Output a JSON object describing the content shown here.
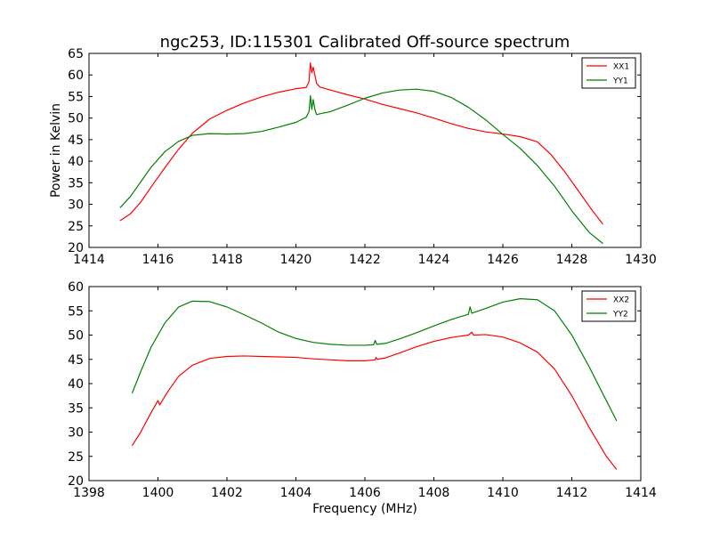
{
  "figure": {
    "title": "ngc253, ID:115301 Calibrated Off-source spectrum",
    "ylabel": "Power in Kelvin",
    "xlabel": "Frequency (MHz)"
  },
  "chart_data": [
    {
      "type": "line",
      "title": "ngc253, ID:115301 Calibrated Off-source spectrum",
      "xlabel": "",
      "ylabel": "Power in Kelvin",
      "xlim": [
        1414,
        1430
      ],
      "ylim": [
        20,
        65
      ],
      "xticks": [
        1414,
        1416,
        1418,
        1420,
        1422,
        1424,
        1426,
        1428,
        1430
      ],
      "yticks": [
        20,
        25,
        30,
        35,
        40,
        45,
        50,
        55,
        60,
        65
      ],
      "grid": false,
      "legend": "top-right",
      "series": [
        {
          "name": "XX1",
          "color": "#ff0000",
          "points": [
            [
              1414.9,
              26.2
            ],
            [
              1415.2,
              27.8
            ],
            [
              1415.5,
              30.5
            ],
            [
              1415.8,
              34.0
            ],
            [
              1416.2,
              38.5
            ],
            [
              1416.6,
              42.8
            ],
            [
              1417.0,
              46.5
            ],
            [
              1417.5,
              49.8
            ],
            [
              1418.0,
              51.8
            ],
            [
              1418.5,
              53.5
            ],
            [
              1419.0,
              54.9
            ],
            [
              1419.5,
              56.0
            ],
            [
              1420.0,
              56.8
            ],
            [
              1420.3,
              57.1
            ],
            [
              1420.38,
              58.5
            ],
            [
              1420.42,
              62.8
            ],
            [
              1420.46,
              60.5
            ],
            [
              1420.5,
              61.8
            ],
            [
              1420.55,
              60.0
            ],
            [
              1420.6,
              58.0
            ],
            [
              1420.7,
              57.2
            ],
            [
              1421.0,
              56.5
            ],
            [
              1421.5,
              55.4
            ],
            [
              1422.0,
              54.4
            ],
            [
              1422.5,
              53.2
            ],
            [
              1423.0,
              52.2
            ],
            [
              1423.5,
              51.2
            ],
            [
              1424.0,
              50.0
            ],
            [
              1424.5,
              48.7
            ],
            [
              1425.0,
              47.6
            ],
            [
              1425.5,
              46.8
            ],
            [
              1426.0,
              46.3
            ],
            [
              1426.5,
              45.7
            ],
            [
              1427.0,
              44.5
            ],
            [
              1427.4,
              41.5
            ],
            [
              1427.8,
              37.5
            ],
            [
              1428.2,
              33.0
            ],
            [
              1428.6,
              28.5
            ],
            [
              1428.9,
              25.4
            ]
          ]
        },
        {
          "name": "YY1",
          "color": "#008000",
          "points": [
            [
              1414.9,
              29.2
            ],
            [
              1415.2,
              31.8
            ],
            [
              1415.5,
              35.2
            ],
            [
              1415.8,
              38.6
            ],
            [
              1416.2,
              42.2
            ],
            [
              1416.6,
              44.6
            ],
            [
              1417.0,
              46.0
            ],
            [
              1417.5,
              46.4
            ],
            [
              1418.0,
              46.3
            ],
            [
              1418.5,
              46.4
            ],
            [
              1419.0,
              46.9
            ],
            [
              1419.5,
              47.9
            ],
            [
              1420.0,
              49.0
            ],
            [
              1420.3,
              50.2
            ],
            [
              1420.38,
              51.5
            ],
            [
              1420.42,
              55.2
            ],
            [
              1420.46,
              52.0
            ],
            [
              1420.5,
              54.3
            ],
            [
              1420.55,
              52.0
            ],
            [
              1420.6,
              50.8
            ],
            [
              1420.7,
              51.0
            ],
            [
              1421.0,
              51.5
            ],
            [
              1421.5,
              53.0
            ],
            [
              1422.0,
              54.6
            ],
            [
              1422.5,
              55.8
            ],
            [
              1423.0,
              56.5
            ],
            [
              1423.5,
              56.7
            ],
            [
              1424.0,
              56.2
            ],
            [
              1424.5,
              54.8
            ],
            [
              1425.0,
              52.5
            ],
            [
              1425.5,
              49.6
            ],
            [
              1426.0,
              46.2
            ],
            [
              1426.5,
              43.0
            ],
            [
              1427.0,
              39.0
            ],
            [
              1427.5,
              34.2
            ],
            [
              1428.0,
              28.5
            ],
            [
              1428.5,
              23.5
            ],
            [
              1428.9,
              20.9
            ]
          ]
        }
      ]
    },
    {
      "type": "line",
      "title": "",
      "xlabel": "Frequency (MHz)",
      "ylabel": "",
      "xlim": [
        1398,
        1414
      ],
      "ylim": [
        20,
        60
      ],
      "xticks": [
        1398,
        1400,
        1402,
        1404,
        1406,
        1408,
        1410,
        1412,
        1414
      ],
      "yticks": [
        20,
        25,
        30,
        35,
        40,
        45,
        50,
        55,
        60
      ],
      "grid": false,
      "legend": "top-right",
      "series": [
        {
          "name": "XX2",
          "color": "#ff0000",
          "points": [
            [
              1399.25,
              27.2
            ],
            [
              1399.5,
              30.0
            ],
            [
              1399.8,
              34.0
            ],
            [
              1400.0,
              36.5
            ],
            [
              1400.05,
              35.6
            ],
            [
              1400.3,
              38.5
            ],
            [
              1400.6,
              41.5
            ],
            [
              1401.0,
              43.8
            ],
            [
              1401.5,
              45.2
            ],
            [
              1402.0,
              45.6
            ],
            [
              1402.5,
              45.7
            ],
            [
              1403.0,
              45.6
            ],
            [
              1403.5,
              45.5
            ],
            [
              1404.0,
              45.4
            ],
            [
              1404.5,
              45.1
            ],
            [
              1405.0,
              44.9
            ],
            [
              1405.5,
              44.7
            ],
            [
              1406.0,
              44.7
            ],
            [
              1406.3,
              44.9
            ],
            [
              1406.32,
              45.4
            ],
            [
              1406.36,
              45.0
            ],
            [
              1406.6,
              45.3
            ],
            [
              1407.0,
              46.3
            ],
            [
              1407.5,
              47.6
            ],
            [
              1408.0,
              48.7
            ],
            [
              1408.5,
              49.5
            ],
            [
              1409.0,
              50.0
            ],
            [
              1409.1,
              50.6
            ],
            [
              1409.15,
              50.0
            ],
            [
              1409.5,
              50.1
            ],
            [
              1410.0,
              49.6
            ],
            [
              1410.5,
              48.4
            ],
            [
              1411.0,
              46.5
            ],
            [
              1411.5,
              43.0
            ],
            [
              1412.0,
              37.5
            ],
            [
              1412.5,
              31.0
            ],
            [
              1413.0,
              25.0
            ],
            [
              1413.3,
              22.3
            ]
          ]
        },
        {
          "name": "YY2",
          "color": "#008000",
          "points": [
            [
              1399.25,
              38.0
            ],
            [
              1399.5,
              42.5
            ],
            [
              1399.8,
              47.5
            ],
            [
              1400.2,
              52.5
            ],
            [
              1400.6,
              55.8
            ],
            [
              1401.0,
              57.0
            ],
            [
              1401.5,
              56.9
            ],
            [
              1402.0,
              55.8
            ],
            [
              1402.5,
              54.2
            ],
            [
              1403.0,
              52.5
            ],
            [
              1403.5,
              50.6
            ],
            [
              1404.0,
              49.3
            ],
            [
              1404.5,
              48.5
            ],
            [
              1405.0,
              48.1
            ],
            [
              1405.5,
              47.9
            ],
            [
              1406.0,
              47.9
            ],
            [
              1406.25,
              48.0
            ],
            [
              1406.3,
              48.9
            ],
            [
              1406.34,
              48.1
            ],
            [
              1406.6,
              48.3
            ],
            [
              1407.0,
              49.2
            ],
            [
              1407.5,
              50.5
            ],
            [
              1408.0,
              51.9
            ],
            [
              1408.5,
              53.2
            ],
            [
              1409.0,
              54.3
            ],
            [
              1409.05,
              55.8
            ],
            [
              1409.1,
              54.5
            ],
            [
              1409.5,
              55.5
            ],
            [
              1410.0,
              56.8
            ],
            [
              1410.5,
              57.5
            ],
            [
              1411.0,
              57.3
            ],
            [
              1411.5,
              55.0
            ],
            [
              1412.0,
              50.0
            ],
            [
              1412.5,
              43.5
            ],
            [
              1413.0,
              36.5
            ],
            [
              1413.3,
              32.3
            ]
          ]
        }
      ]
    }
  ]
}
